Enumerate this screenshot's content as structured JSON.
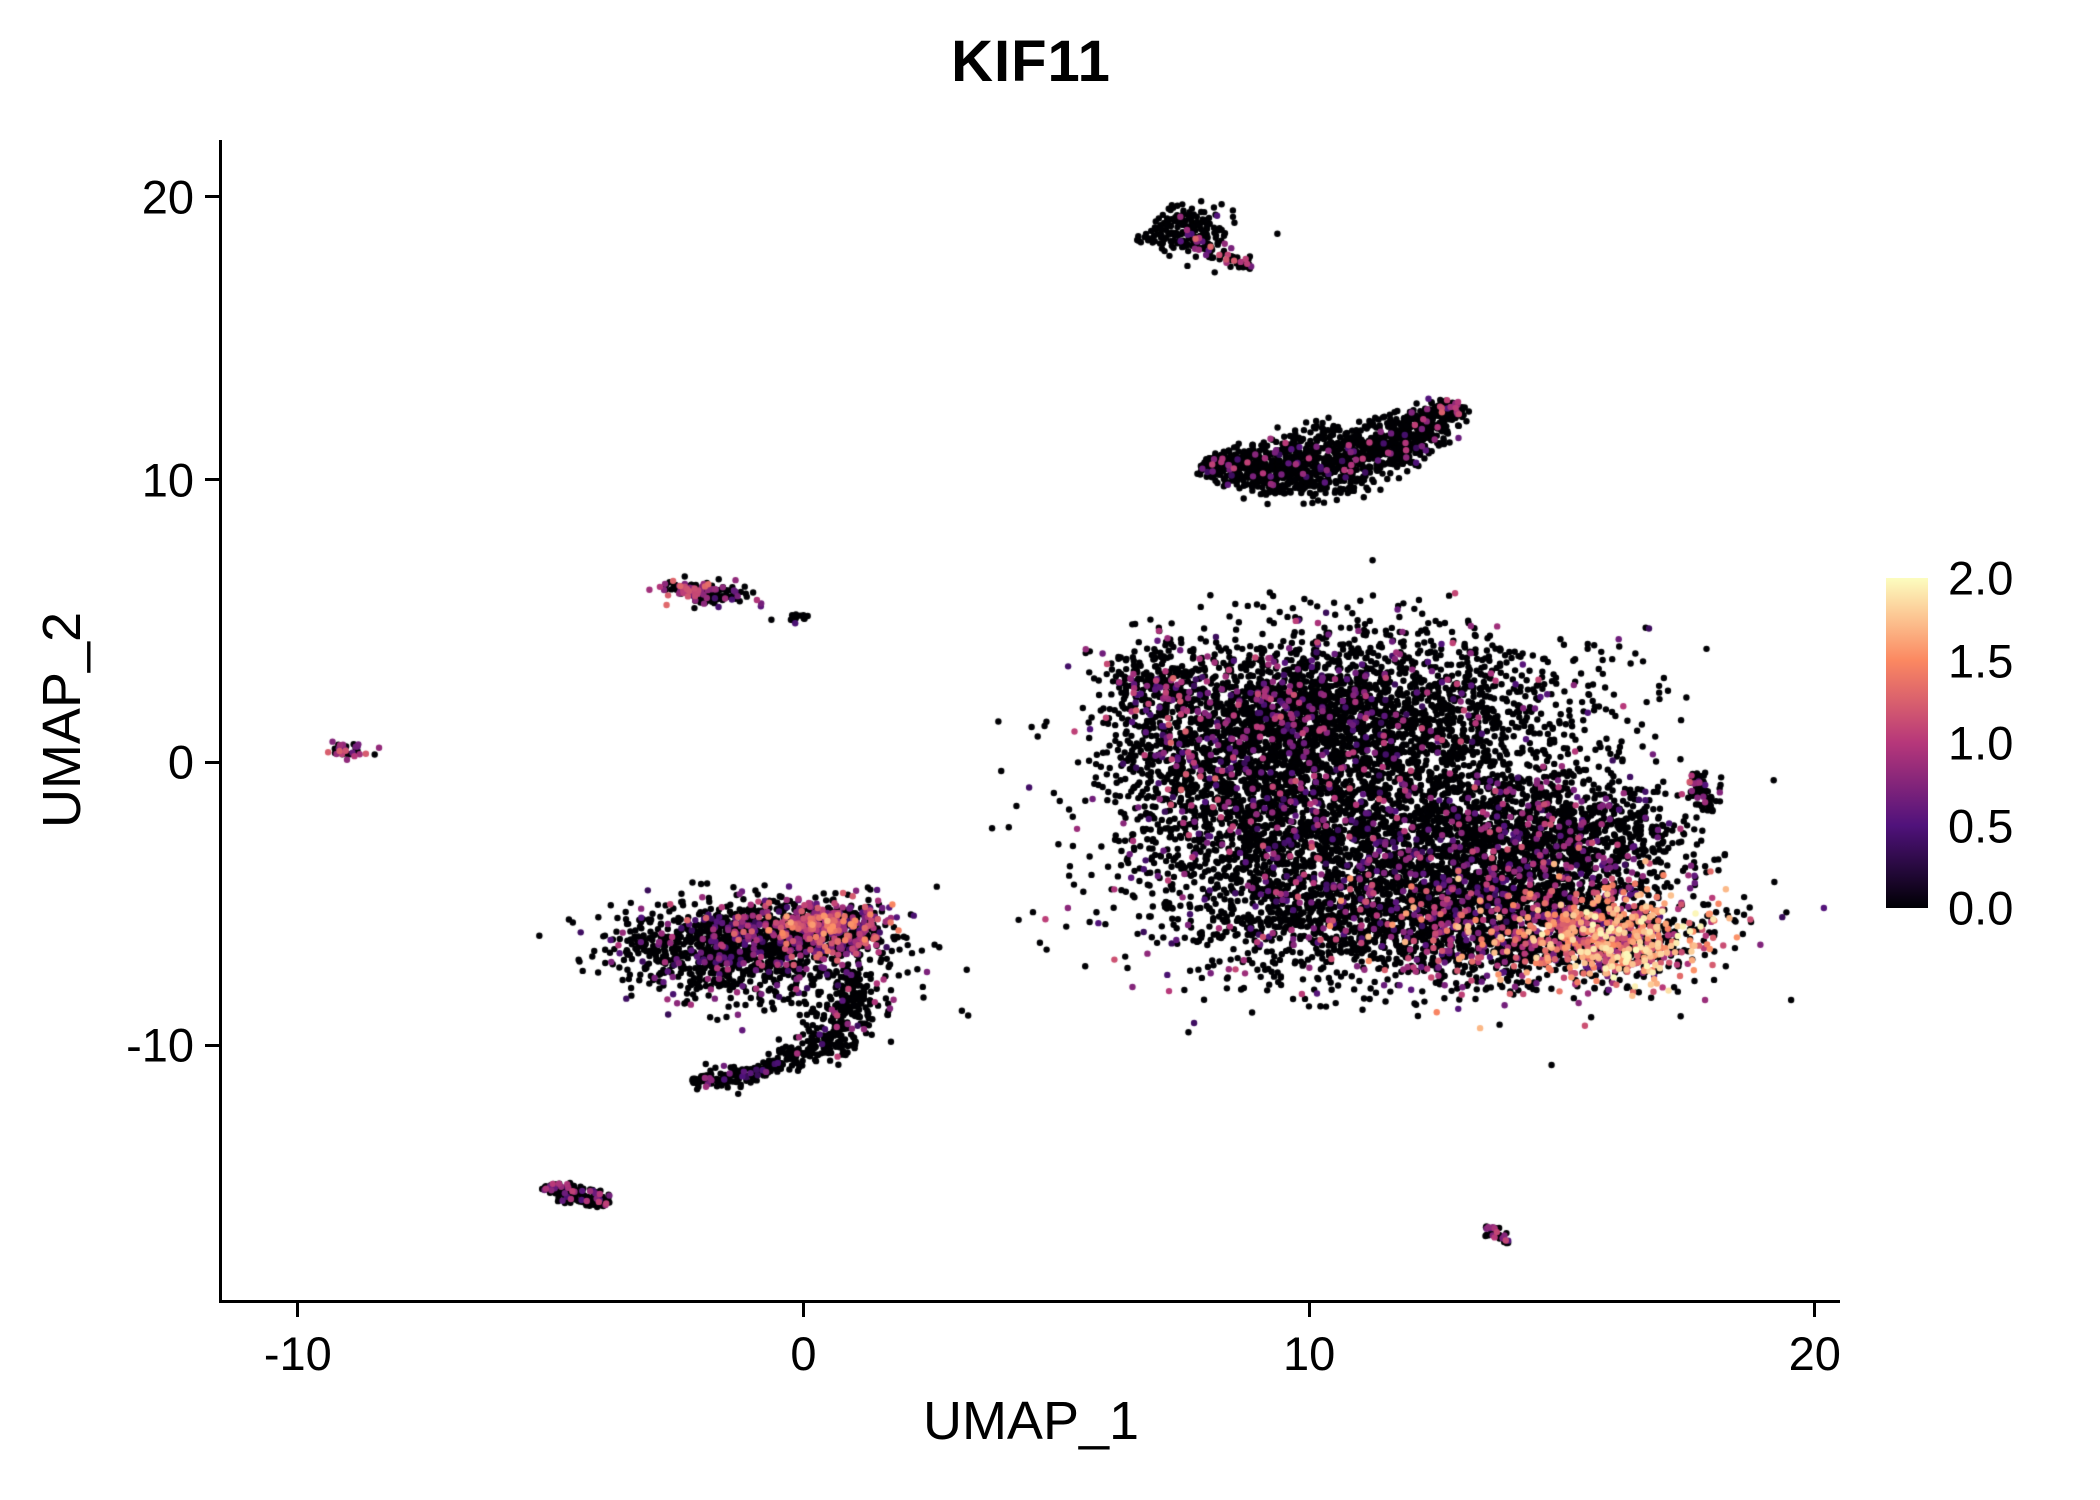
{
  "chart_data": {
    "type": "scatter",
    "title": "KIF11",
    "xlabel": "UMAP_1",
    "ylabel": "UMAP_2",
    "xlim": [
      -11.5,
      20.5
    ],
    "ylim": [
      -19,
      22
    ],
    "xticks": [
      -10,
      0,
      10,
      20
    ],
    "yticks": [
      -10,
      0,
      10,
      20
    ],
    "grid": false,
    "point_radius_px": 3.2,
    "seed": 42,
    "colorbar": {
      "min": 0,
      "max": 2,
      "label_values": [
        2.0,
        1.5,
        1.0,
        0.5,
        0.0
      ],
      "palette": [
        {
          "t": 0.0,
          "color": "#000004"
        },
        {
          "t": 0.25,
          "color": "#50127b"
        },
        {
          "t": 0.5,
          "color": "#b6377a"
        },
        {
          "t": 0.75,
          "color": "#fb8861"
        },
        {
          "t": 1.0,
          "color": "#fcfdbf"
        }
      ]
    },
    "clusters": [
      {
        "name": "top-small-cluster",
        "components": [
          {
            "type": "gauss",
            "cx": 7.5,
            "cy": 18.8,
            "rx": 0.42,
            "ry": 0.5,
            "rot": -20,
            "n": 170,
            "expr": [
              0.93,
              0.4,
              1.0
            ]
          },
          {
            "type": "curve",
            "p0": [
              7.7,
              18.5
            ],
            "p1": [
              8.2,
              18.0
            ],
            "p2": [
              8.9,
              17.5
            ],
            "w": 0.16,
            "n": 70,
            "expr": [
              0.8,
              0.5,
              1.3
            ]
          }
        ]
      },
      {
        "name": "upper-crescent-cluster",
        "components": [
          {
            "type": "curve",
            "p0": [
              7.9,
              10.6
            ],
            "p1": [
              10.6,
              9.5
            ],
            "p2": [
              12.9,
              12.7
            ],
            "w": 0.52,
            "n": 1400,
            "expr": [
              0.94,
              0.35,
              1.1
            ]
          },
          {
            "type": "gauss",
            "cx": 12.85,
            "cy": 12.55,
            "rx": 0.12,
            "ry": 0.12,
            "rot": 0,
            "n": 10,
            "expr": [
              0.2,
              0.8,
              1.3
            ]
          }
        ]
      },
      {
        "name": "main-blob-cluster",
        "components": [
          {
            "type": "gauss",
            "cx": 6.9,
            "cy": 2.9,
            "rx": 0.5,
            "ry": 0.7,
            "rot": 0,
            "n": 170,
            "expr": [
              0.85,
              0.4,
              1.2
            ]
          },
          {
            "type": "gauss",
            "cx": 7.3,
            "cy": 0.8,
            "rx": 0.45,
            "ry": 1.2,
            "rot": 0,
            "n": 140,
            "expr": [
              0.7,
              0.4,
              1.3
            ]
          },
          {
            "type": "gauss",
            "cx": 9.3,
            "cy": 1.6,
            "rx": 1.5,
            "ry": 1.4,
            "rot": 0,
            "n": 1000,
            "expr": [
              0.88,
              0.35,
              1.1
            ]
          },
          {
            "type": "gauss",
            "cx": 11.6,
            "cy": 1.9,
            "rx": 2.1,
            "ry": 1.5,
            "rot": 0,
            "n": 1500,
            "expr": [
              0.9,
              0.35,
              1.1
            ]
          },
          {
            "type": "gauss",
            "cx": 8.9,
            "cy": -1.6,
            "rx": 1.4,
            "ry": 1.8,
            "rot": 0,
            "n": 1000,
            "expr": [
              0.88,
              0.35,
              1.2
            ]
          },
          {
            "type": "gauss",
            "cx": 11.4,
            "cy": -2.6,
            "rx": 2.2,
            "ry": 2.1,
            "rot": 0,
            "n": 1800,
            "expr": [
              0.9,
              0.35,
              1.1
            ]
          },
          {
            "type": "gauss",
            "cx": 13.9,
            "cy": -3.3,
            "rx": 1.7,
            "ry": 1.7,
            "rot": 0,
            "n": 1100,
            "expr": [
              0.88,
              0.35,
              1.2
            ]
          },
          {
            "type": "gauss",
            "cx": 15.4,
            "cy": -2.4,
            "rx": 1.1,
            "ry": 0.9,
            "rot": -30,
            "n": 400,
            "expr": [
              0.9,
              0.35,
              1.0
            ]
          },
          {
            "type": "gauss",
            "cx": 11.9,
            "cy": -5.6,
            "rx": 2.4,
            "ry": 1.2,
            "rot": 0,
            "n": 1300,
            "expr": [
              0.87,
              0.35,
              1.2
            ]
          },
          {
            "type": "gauss",
            "cx": 14.8,
            "cy": -5.8,
            "rx": 1.5,
            "ry": 1.1,
            "rot": 0,
            "n": 900,
            "expr": [
              0.6,
              0.5,
              1.8
            ]
          },
          {
            "type": "gauss",
            "cx": 16.1,
            "cy": -6.3,
            "rx": 0.85,
            "ry": 0.75,
            "rot": 0,
            "n": 500,
            "expr": [
              0.22,
              0.9,
              2.0
            ]
          }
        ]
      },
      {
        "name": "right-small-cluster",
        "components": [
          {
            "type": "curve",
            "p0": [
              17.6,
              -0.4
            ],
            "p1": [
              17.8,
              -1.0
            ],
            "p2": [
              17.9,
              -1.7
            ],
            "w": 0.14,
            "n": 70,
            "expr": [
              0.82,
              0.5,
              1.4
            ]
          }
        ]
      },
      {
        "name": "lower-left-cluster",
        "components": [
          {
            "type": "gauss",
            "cx": -1.7,
            "cy": -6.4,
            "rx": 1.05,
            "ry": 0.7,
            "rot": 0,
            "n": 700,
            "expr": [
              0.88,
              0.35,
              1.0
            ]
          },
          {
            "type": "gauss",
            "cx": -0.2,
            "cy": -6.0,
            "rx": 0.9,
            "ry": 0.65,
            "rot": 0,
            "n": 500,
            "expr": [
              0.72,
              0.4,
              1.3
            ]
          },
          {
            "type": "gauss",
            "cx": 0.7,
            "cy": -5.9,
            "rx": 0.55,
            "ry": 0.5,
            "rot": 0,
            "n": 260,
            "expr": [
              0.5,
              0.5,
              1.5
            ]
          },
          {
            "type": "gauss",
            "cx": 0.3,
            "cy": -5.7,
            "rx": 0.5,
            "ry": 0.18,
            "rot": 0,
            "n": 90,
            "expr": [
              0.25,
              0.7,
              1.7
            ]
          },
          {
            "type": "gauss",
            "cx": -0.6,
            "cy": -7.6,
            "rx": 1.4,
            "ry": 0.7,
            "rot": 0,
            "n": 260,
            "expr": [
              0.85,
              0.35,
              1.0
            ]
          },
          {
            "type": "curve",
            "p0": [
              0.9,
              -7.3
            ],
            "p1": [
              1.4,
              -9.6
            ],
            "p2": [
              -0.7,
              -10.8
            ],
            "w": 0.3,
            "n": 330,
            "expr": [
              0.9,
              0.35,
              1.1
            ]
          },
          {
            "type": "curve",
            "p0": [
              -0.7,
              -10.8
            ],
            "p1": [
              -1.5,
              -11.3
            ],
            "p2": [
              -2.2,
              -11.2
            ],
            "w": 0.2,
            "n": 120,
            "expr": [
              0.92,
              0.35,
              0.9
            ]
          }
        ]
      },
      {
        "name": "small-streak-cluster",
        "components": [
          {
            "type": "gauss",
            "cx": -2.3,
            "cy": 6.1,
            "rx": 0.28,
            "ry": 0.18,
            "rot": -10,
            "n": 60,
            "expr": [
              0.3,
              0.7,
              1.5
            ]
          },
          {
            "type": "gauss",
            "cx": -1.75,
            "cy": 5.95,
            "rx": 0.4,
            "ry": 0.2,
            "rot": -10,
            "n": 90,
            "expr": [
              0.82,
              0.4,
              1.0
            ]
          },
          {
            "type": "gauss",
            "cx": -0.2,
            "cy": 5.15,
            "rx": 0.18,
            "ry": 0.1,
            "rot": 0,
            "n": 14,
            "expr": [
              0.9,
              0.4,
              0.8
            ]
          }
        ]
      },
      {
        "name": "far-left-tiny-cluster",
        "components": [
          {
            "type": "gauss",
            "cx": -9.0,
            "cy": 0.45,
            "rx": 0.22,
            "ry": 0.18,
            "rot": 0,
            "n": 30,
            "expr": [
              0.5,
              0.6,
              1.3
            ]
          }
        ]
      },
      {
        "name": "bottom-left-cluster",
        "components": [
          {
            "type": "curve",
            "p0": [
              -5.15,
              -15.0
            ],
            "p1": [
              -4.5,
              -15.2
            ],
            "p2": [
              -3.85,
              -15.6
            ],
            "w": 0.2,
            "n": 160,
            "expr": [
              0.82,
              0.4,
              1.1
            ]
          }
        ]
      },
      {
        "name": "bottom-right-tiny-cluster",
        "components": [
          {
            "type": "curve",
            "p0": [
              13.5,
              -16.4
            ],
            "p1": [
              13.7,
              -16.7
            ],
            "p2": [
              13.95,
              -17.0
            ],
            "w": 0.1,
            "n": 30,
            "expr": [
              0.6,
              0.5,
              1.1
            ]
          }
        ]
      }
    ]
  }
}
